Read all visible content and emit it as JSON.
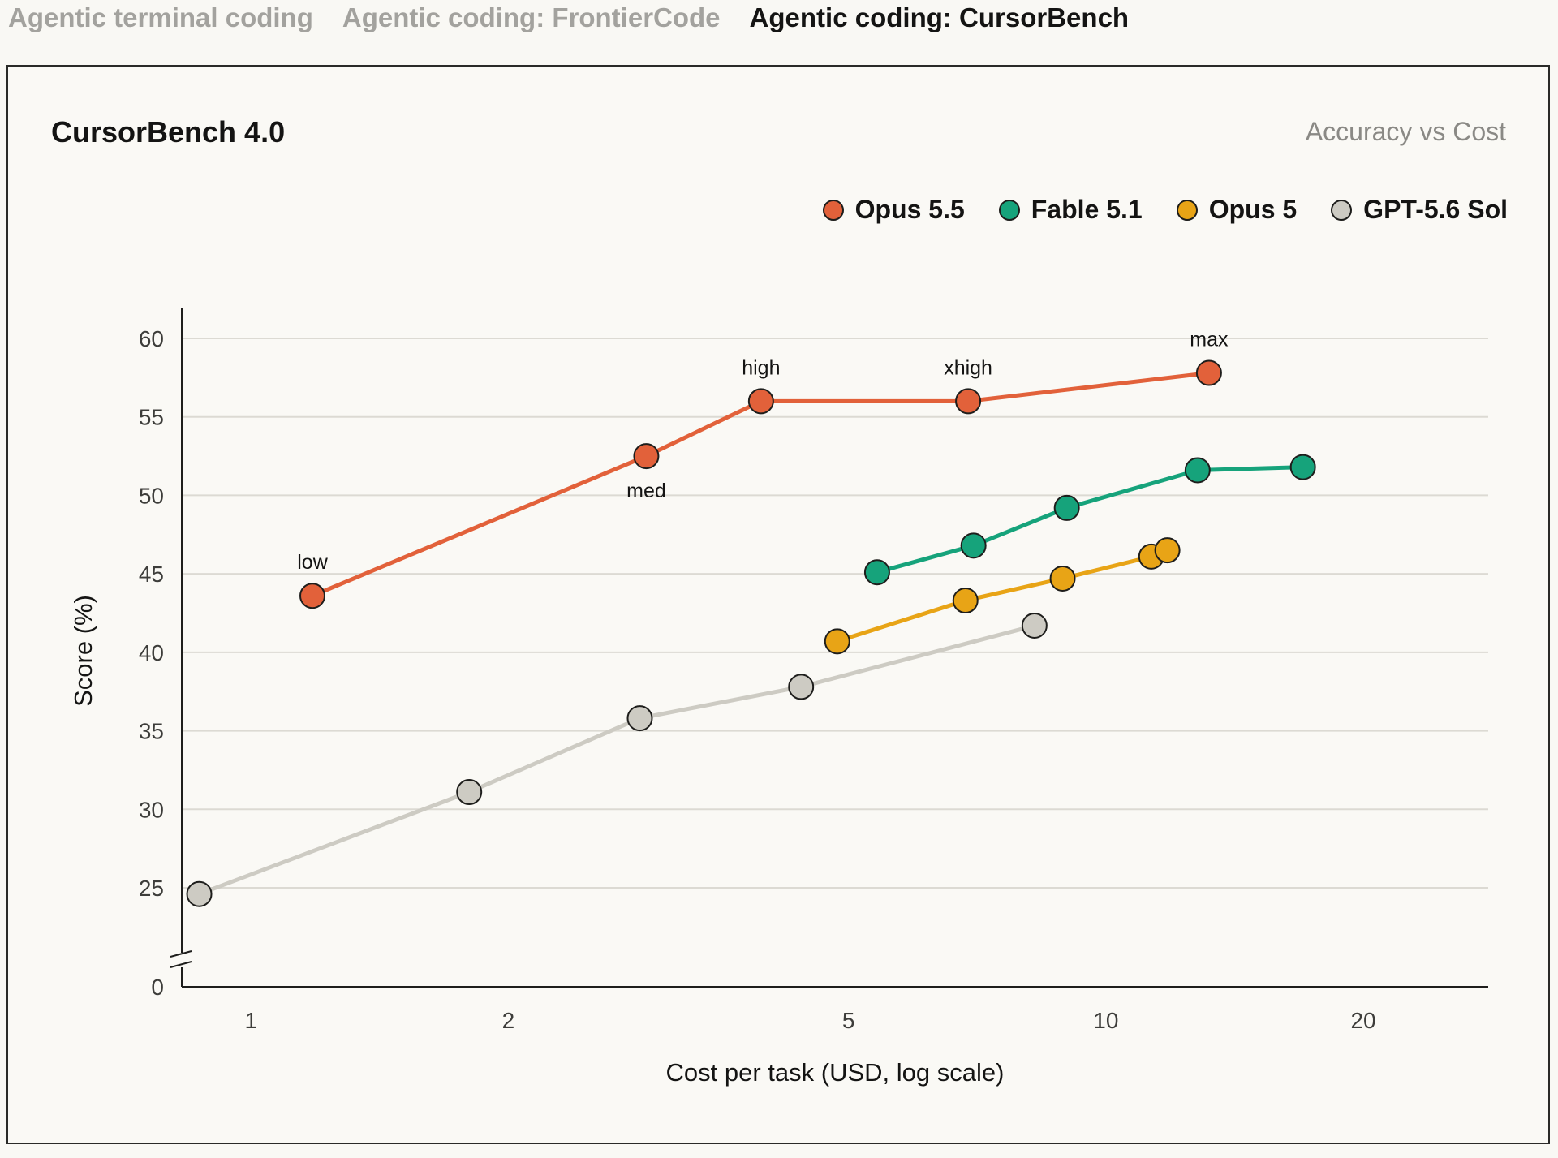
{
  "tabs": [
    {
      "label": "Agentic terminal coding",
      "active": false
    },
    {
      "label": "Agentic coding: FrontierCode",
      "active": false
    },
    {
      "label": "Agentic coding: CursorBench",
      "active": true
    }
  ],
  "chart_data": {
    "type": "line",
    "title": "CursorBench 4.0",
    "subtitle": "Accuracy vs Cost",
    "xlabel": "Cost per task (USD, log scale)",
    "ylabel": "Score (%)",
    "x_scale": "log",
    "xlim": [
      0.83,
      28
    ],
    "x_ticks": [
      1,
      2,
      5,
      10,
      20
    ],
    "y_ticks": [
      0,
      25,
      30,
      35,
      40,
      45,
      50,
      55,
      60
    ],
    "y_axis_break": "between 0 and 25",
    "grid": "horizontal",
    "legend_position": "top-right",
    "series": [
      {
        "name": "Opus 5.5",
        "color": "#e2613a",
        "points": [
          {
            "x": 1.18,
            "y": 43.6,
            "label": "low"
          },
          {
            "x": 2.9,
            "y": 52.5,
            "label": "med"
          },
          {
            "x": 3.95,
            "y": 56.0,
            "label": "high"
          },
          {
            "x": 6.9,
            "y": 56.0,
            "label": "xhigh"
          },
          {
            "x": 13.2,
            "y": 57.8,
            "label": "max"
          }
        ]
      },
      {
        "name": "Fable 5.1",
        "color": "#16a37b",
        "points": [
          {
            "x": 5.4,
            "y": 45.1
          },
          {
            "x": 7.0,
            "y": 46.8
          },
          {
            "x": 9.0,
            "y": 49.2
          },
          {
            "x": 12.8,
            "y": 51.6
          },
          {
            "x": 17.0,
            "y": 51.8
          }
        ]
      },
      {
        "name": "Opus 5",
        "color": "#e8a416",
        "points": [
          {
            "x": 4.85,
            "y": 40.7
          },
          {
            "x": 6.85,
            "y": 43.3
          },
          {
            "x": 8.9,
            "y": 44.7
          },
          {
            "x": 11.3,
            "y": 46.1
          },
          {
            "x": 11.8,
            "y": 46.5
          }
        ]
      },
      {
        "name": "GPT-5.6 Sol",
        "color": "#cdcbc3",
        "points": [
          {
            "x": 0.87,
            "y": 24.6
          },
          {
            "x": 1.8,
            "y": 31.1
          },
          {
            "x": 2.85,
            "y": 35.8
          },
          {
            "x": 4.4,
            "y": 37.8
          },
          {
            "x": 8.25,
            "y": 41.7
          }
        ]
      }
    ]
  }
}
